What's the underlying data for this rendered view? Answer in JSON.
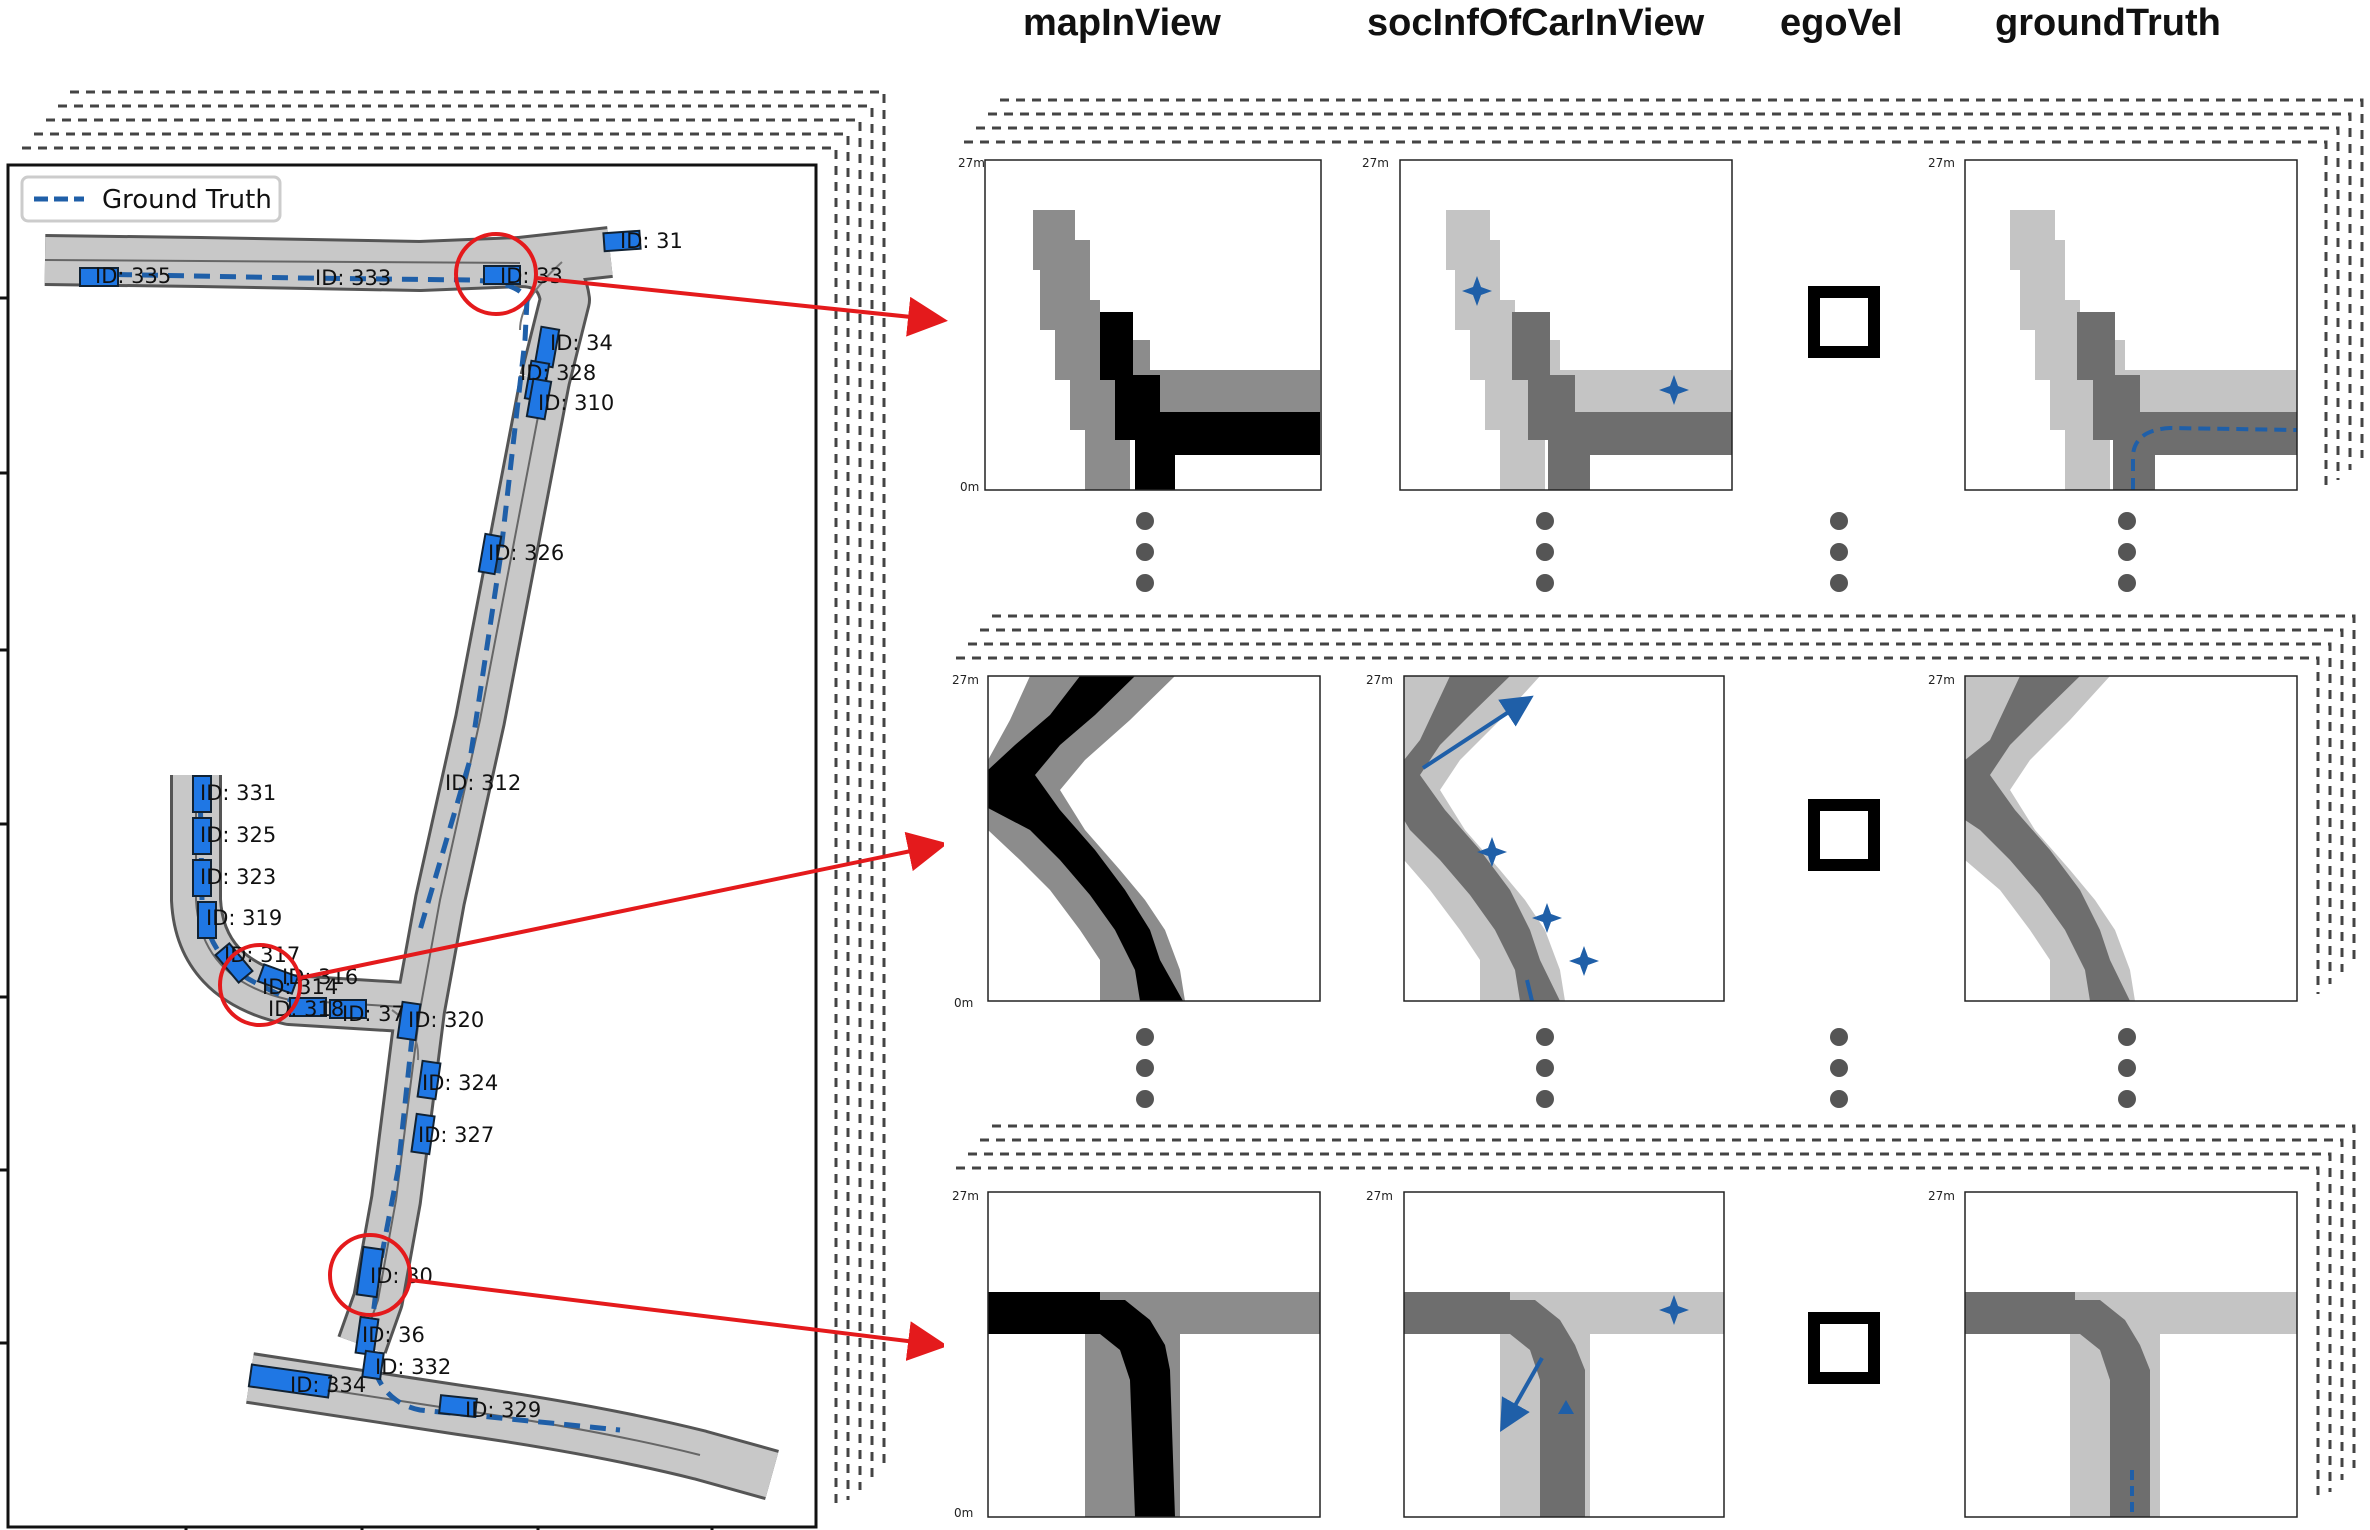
{
  "column_titles": {
    "map": "mapInView",
    "social": "socInfOfCarInView",
    "ego": "egoVel",
    "truth": "groundTruth"
  },
  "legend": {
    "label": "Ground Truth"
  },
  "car_ids": {
    "c31": "ID: 31",
    "c335": "ID: 335",
    "c333": "ID: 333",
    "c33": "ID: 33",
    "c34": "ID: 34",
    "c328": "ID: 328",
    "c310": "ID: 310",
    "c326": "ID: 326",
    "c312": "ID: 312",
    "c331": "ID: 331",
    "c325": "ID: 325",
    "c323": "ID: 323",
    "c319": "ID: 319",
    "c317": "ID: 317",
    "c316": "ID: 316",
    "c314": "ID: 314",
    "c318": "ID: 318",
    "c37": "ID: 37",
    "c320": "ID: 320",
    "c324": "ID: 324",
    "c327": "ID: 327",
    "c30": "ID: 30",
    "c36": "ID: 36",
    "c332": "ID: 332",
    "c334": "ID: 334",
    "c329": "ID: 329"
  },
  "axis": {
    "top": "27m",
    "bottom": "0m"
  },
  "colors": {
    "road": "#c8c8c8",
    "road_edge": "#555555",
    "car": "#1f77e4",
    "trajectory": "#1f5fa8",
    "highlight": "#e41a1c",
    "lane_black": "#000000",
    "lane_mid": "#6e6e6e",
    "lane_light": "#c4c4c4",
    "lane_mid2": "#8c8c8c"
  }
}
